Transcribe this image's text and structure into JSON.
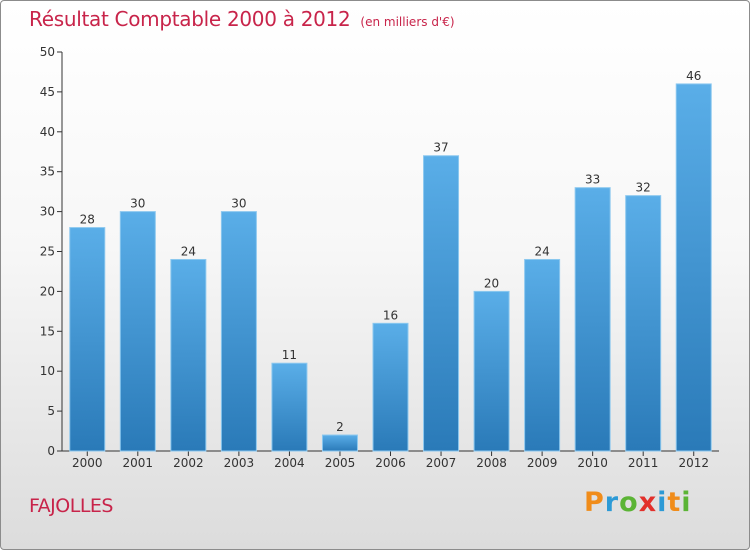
{
  "header": {
    "title": "Résultat Comptable 2000 à 2012",
    "unit_note": "(en milliers d'€)"
  },
  "footer": {
    "location": "FAJOLLES",
    "logo": "Proxiti",
    "logo_colors": [
      "#f08c1a",
      "#2c9ad6",
      "#5bb435",
      "#e2302b",
      "#2c9ad6",
      "#f08c1a",
      "#5bb435"
    ]
  },
  "colors": {
    "bar_light": "#5aaee8",
    "bar_dark": "#2a7ab8",
    "title": "#c8244a"
  },
  "chart_data": {
    "type": "bar",
    "title": "Résultat Comptable 2000 à 2012",
    "subtitle": "(en milliers d'€)",
    "categories": [
      "2000",
      "2001",
      "2002",
      "2003",
      "2004",
      "2005",
      "2006",
      "2007",
      "2008",
      "2009",
      "2010",
      "2011",
      "2012"
    ],
    "values": [
      28,
      30,
      24,
      30,
      11,
      2,
      16,
      37,
      20,
      24,
      33,
      32,
      46
    ],
    "ylim": [
      0,
      50
    ],
    "yticks": [
      0,
      5,
      10,
      15,
      20,
      25,
      30,
      35,
      40,
      45,
      50
    ],
    "grid": false,
    "data_labels": true
  }
}
